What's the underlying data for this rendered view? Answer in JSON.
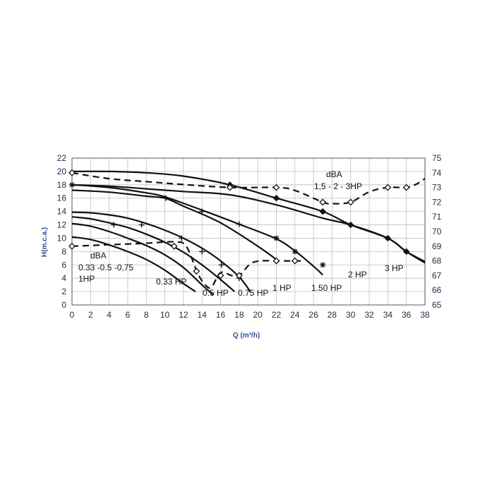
{
  "chart_data": {
    "type": "line",
    "xlabel": "Q (m³/h)",
    "ylabel": "H(m.c.a.)",
    "y2label": "",
    "xlim": [
      0,
      38
    ],
    "ylim": [
      0,
      22
    ],
    "y2lim": [
      65,
      75
    ],
    "x_ticks": [
      "0",
      "2",
      "4",
      "6",
      "8",
      "10",
      "12",
      "14",
      "16",
      "18",
      "20",
      "22",
      "24",
      "26",
      "28",
      "30",
      "32",
      "34",
      "36",
      "38"
    ],
    "y_ticks": [
      "0",
      "2",
      "4",
      "6",
      "8",
      "10",
      "12",
      "14",
      "16",
      "18",
      "20",
      "22"
    ],
    "y2_ticks": [
      "65",
      "66",
      "67",
      "68",
      "69",
      "70",
      "71",
      "72",
      "73",
      "74",
      "75"
    ],
    "grid": true,
    "series": [
      {
        "name": "0.33 HP",
        "axis": "left",
        "style": "solid",
        "marker": "none",
        "x": [
          0,
          2,
          4,
          6,
          8,
          10,
          12,
          13.3
        ],
        "y": [
          10.2,
          9.8,
          9.0,
          8.0,
          6.8,
          5.2,
          3.2,
          2.0
        ]
      },
      {
        "name": "0.5 HP",
        "axis": "left",
        "style": "solid",
        "marker": "plus",
        "x": [
          0,
          2,
          4,
          6,
          8,
          10,
          12,
          14,
          15.2
        ],
        "y": [
          12.2,
          11.8,
          11.0,
          10.0,
          8.9,
          7.5,
          5.6,
          3.0,
          1.5
        ]
      },
      {
        "name": "0.75 HP",
        "axis": "left",
        "style": "solid",
        "marker": "none",
        "x": [
          0,
          2,
          4,
          6,
          8,
          10,
          12,
          14,
          16,
          17.5
        ],
        "y": [
          13.2,
          12.9,
          12.3,
          11.6,
          10.6,
          9.4,
          7.9,
          6.0,
          3.8,
          2.0
        ]
      },
      {
        "name": "1 HP",
        "axis": "left",
        "style": "solid",
        "marker": "none",
        "x": [
          0,
          2,
          4,
          6,
          8,
          10,
          12,
          14,
          16,
          18,
          19.2
        ],
        "y": [
          13.9,
          13.8,
          13.5,
          13.0,
          12.2,
          11.2,
          10.0,
          8.5,
          6.6,
          4.2,
          2.0
        ]
      },
      {
        "name": "1.50 HP",
        "axis": "left",
        "style": "solid",
        "marker": "plus",
        "x": [
          0,
          4,
          8,
          10,
          12,
          16,
          20,
          22.3
        ],
        "y": [
          17.2,
          16.9,
          16.3,
          16.0,
          14.8,
          12.3,
          8.8,
          6.5
        ]
      },
      {
        "name": "2 HP",
        "axis": "left",
        "style": "solid",
        "marker": "star",
        "x": [
          0,
          4,
          8,
          10,
          14,
          18,
          22,
          24,
          26,
          27
        ],
        "y": [
          18.0,
          17.6,
          16.8,
          16.2,
          14.2,
          12.1,
          9.9,
          8.1,
          5.8,
          4.5
        ]
      },
      {
        "name": "3 HP",
        "axis": "left",
        "style": "solid",
        "marker": "diamond",
        "x": [
          0,
          4,
          8,
          12,
          17,
          22,
          27,
          30,
          34,
          36,
          38
        ],
        "y": [
          18.0,
          17.8,
          17.4,
          17.0,
          16.5,
          15.0,
          13.0,
          12.0,
          10.0,
          8.0,
          6.5
        ]
      },
      {
        "name": "1,5 - 2 - 3HP",
        "axis": "left",
        "style": "solid",
        "marker": "diamond",
        "x": [
          0,
          4,
          8,
          12,
          17,
          22,
          27,
          30,
          34,
          36,
          38
        ],
        "y": [
          20.0,
          20.0,
          19.8,
          19.3,
          18.0,
          16.0,
          14.0,
          12.0,
          10.0,
          8.0,
          6.3
        ]
      },
      {
        "name": "dBA 0.33 -0.5 -0,75 1HP",
        "axis": "right",
        "style": "dashed",
        "marker": "diamond-open",
        "x": [
          0,
          4,
          8,
          11,
          12.3,
          13.5,
          14.3,
          15.0,
          16.0,
          17.2,
          18.0,
          19.2,
          20.3,
          22,
          24,
          25
        ],
        "y": [
          69.0,
          69.1,
          69.2,
          69.3,
          69.0,
          67.2,
          66.4,
          66.2,
          67.2,
          67.0,
          67.0,
          67.8,
          68.0,
          68.0,
          68.0,
          68.0
        ]
      },
      {
        "name": "dBA 1,5 - 2 - 3HP",
        "axis": "right",
        "style": "dashed",
        "marker": "diamond-open",
        "x": [
          0,
          4,
          8,
          12,
          17,
          22,
          24,
          27,
          28,
          30,
          32,
          34,
          36,
          37,
          38
        ],
        "y": [
          74.0,
          73.6,
          73.4,
          73.2,
          73.0,
          73.0,
          72.8,
          72.0,
          71.9,
          72.0,
          72.7,
          73.0,
          73.0,
          73.2,
          73.6
        ]
      }
    ],
    "markers": {
      "plus": [
        [
          11.8,
          10.0
        ],
        [
          14.0,
          8.0
        ],
        [
          16.1,
          6.0
        ],
        [
          18.0,
          4.0
        ],
        [
          4.5,
          12.0
        ],
        [
          7.5,
          12.0
        ],
        [
          10.1,
          16.0
        ],
        [
          14.0,
          14.0
        ],
        [
          18.0,
          12.1
        ]
      ],
      "star": [
        [
          0,
          18.0
        ],
        [
          22.0,
          10.0
        ],
        [
          24.0,
          8.0
        ],
        [
          27.0,
          6.0
        ]
      ],
      "diamond": [
        [
          17.0,
          18.0
        ],
        [
          22.0,
          16.0
        ],
        [
          27.0,
          14.0
        ],
        [
          30.0,
          12.0
        ],
        [
          34.0,
          10.0
        ],
        [
          36.0,
          8.0
        ]
      ],
      "diamond-open-right": [
        [
          0,
          74.0
        ],
        [
          17.0,
          73.0
        ],
        [
          22.0,
          73.0
        ],
        [
          27.0,
          72.0
        ],
        [
          30.0,
          72.0
        ],
        [
          34.0,
          73.0
        ],
        [
          36.0,
          73.0
        ],
        [
          0,
          69.0
        ],
        [
          11.0,
          69.0
        ],
        [
          13.4,
          67.3
        ],
        [
          16.0,
          67.0
        ],
        [
          18.0,
          67.0
        ],
        [
          22.0,
          68.0
        ],
        [
          24.0,
          68.0
        ]
      ]
    },
    "labels": {
      "dba_top": "dBA",
      "dba_top_sub": "1,5 - 2 - 3HP",
      "dba_left": "dBA",
      "dba_left_sub": "0.33 -0.5 -0,75",
      "dba_left_sub2": "1HP",
      "hp_033": "0.33 HP",
      "hp_05": "0.5 HP",
      "hp_075": "0.75 HP",
      "hp_1": "1 HP",
      "hp_150": "1.50 HP",
      "hp_2": "2 HP",
      "hp_3": "3 HP"
    }
  }
}
